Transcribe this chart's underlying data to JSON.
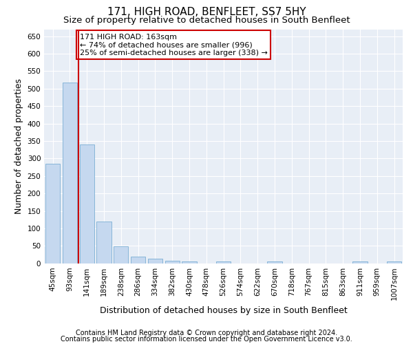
{
  "title": "171, HIGH ROAD, BENFLEET, SS7 5HY",
  "subtitle": "Size of property relative to detached houses in South Benfleet",
  "xlabel": "Distribution of detached houses by size in South Benfleet",
  "ylabel": "Number of detached properties",
  "footer1": "Contains HM Land Registry data © Crown copyright and database right 2024.",
  "footer2": "Contains public sector information licensed under the Open Government Licence v3.0.",
  "bins": [
    "45sqm",
    "93sqm",
    "141sqm",
    "189sqm",
    "238sqm",
    "286sqm",
    "334sqm",
    "382sqm",
    "430sqm",
    "478sqm",
    "526sqm",
    "574sqm",
    "622sqm",
    "670sqm",
    "718sqm",
    "767sqm",
    "815sqm",
    "863sqm",
    "911sqm",
    "959sqm",
    "1007sqm"
  ],
  "values": [
    285,
    518,
    340,
    120,
    48,
    20,
    13,
    8,
    5,
    0,
    5,
    0,
    0,
    5,
    0,
    0,
    0,
    0,
    5,
    0,
    5
  ],
  "bar_color": "#c5d8ef",
  "bar_edge_color": "#7aaed4",
  "vline_color": "#cc0000",
  "annotation_text": "171 HIGH ROAD: 163sqm\n← 74% of detached houses are smaller (996)\n25% of semi-detached houses are larger (338) →",
  "annotation_box_color": "#ffffff",
  "annotation_box_edge_color": "#cc0000",
  "ylim": [
    0,
    670
  ],
  "yticks": [
    0,
    50,
    100,
    150,
    200,
    250,
    300,
    350,
    400,
    450,
    500,
    550,
    600,
    650
  ],
  "plot_bg_color": "#e8eef6",
  "title_fontsize": 11,
  "subtitle_fontsize": 9.5,
  "axis_label_fontsize": 9,
  "tick_fontsize": 7.5,
  "annotation_fontsize": 8,
  "footer_fontsize": 7
}
